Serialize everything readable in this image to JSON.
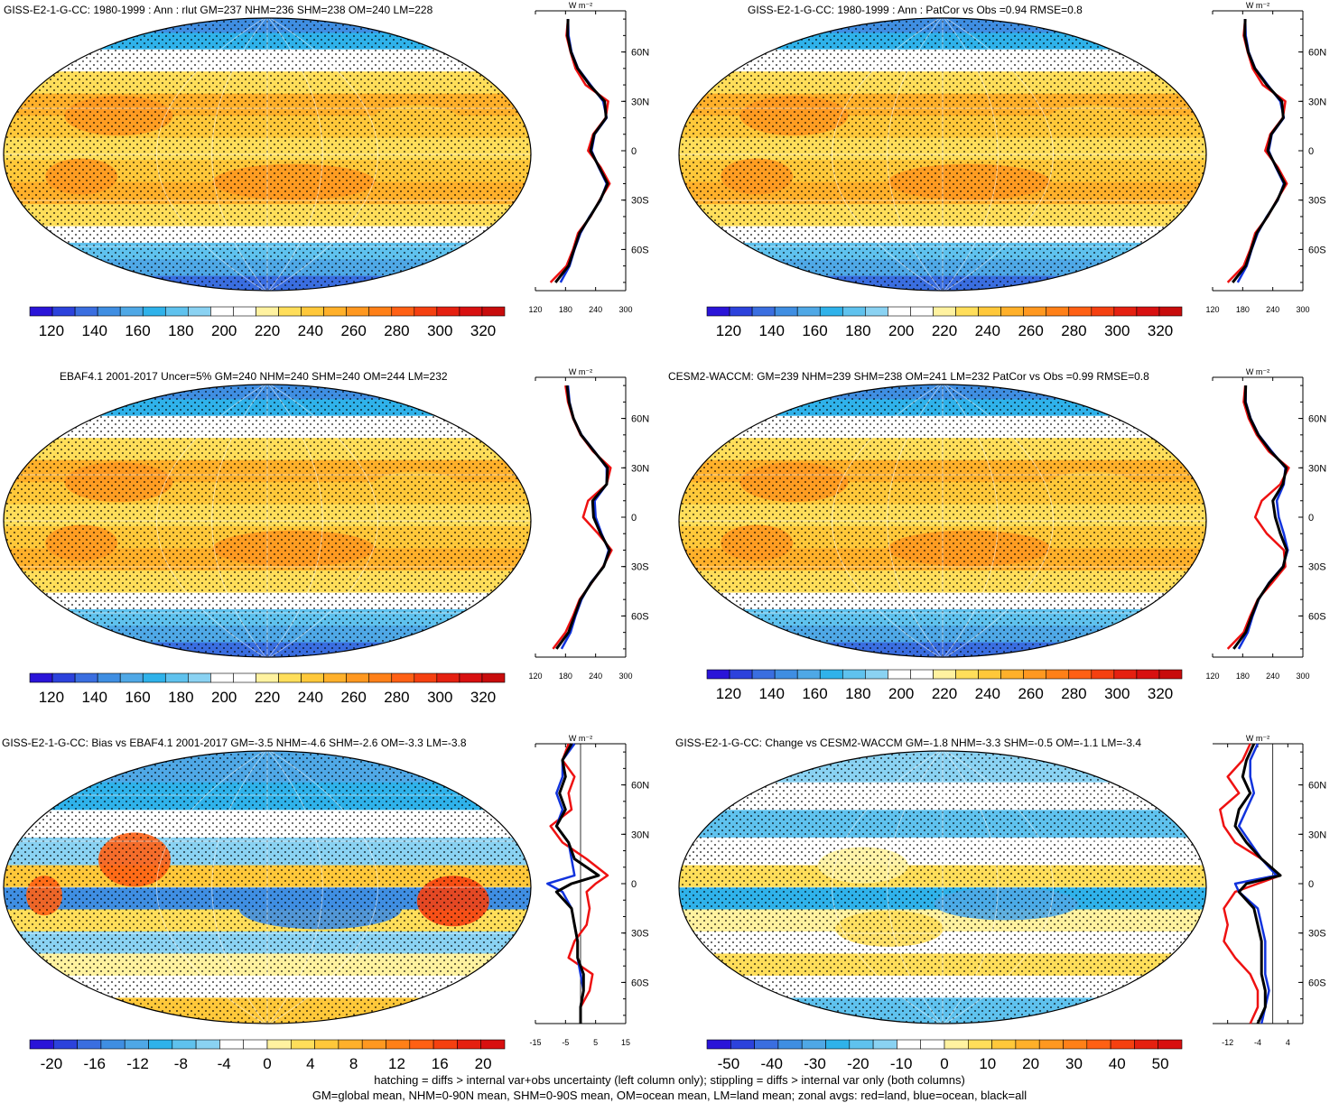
{
  "footnote": {
    "line1": "hatching = diffs > internal var+obs uncertainty (left column only); stippling = diffs > internal var only (both columns)",
    "line2": "GM=global mean, NHM=0-90N mean, SHM=0-90S mean, OM=ocean mean, LM=land mean; zonal avgs: red=land, blue=ocean, black=all"
  },
  "colors": {
    "land": "#ee1111",
    "ocean": "#1133dd",
    "all": "#000000",
    "abs_scale": [
      "#2a14d8",
      "#2c42dc",
      "#3a6ee0",
      "#3f8ee2",
      "#4fa8e6",
      "#2fb2ea",
      "#5fc2ee",
      "#8ad2f2",
      "#ffffff",
      "#ffffff",
      "#fff2a0",
      "#ffde5a",
      "#ffc83a",
      "#ffb02a",
      "#ff9820",
      "#ff8018",
      "#ff6014",
      "#f54010",
      "#e52010",
      "#d81010",
      "#c80c0c"
    ],
    "diff_scale": [
      "#2a14d8",
      "#2c42dc",
      "#3a6ee0",
      "#3f8ee2",
      "#4fa8e6",
      "#2fb2ea",
      "#5fc2ee",
      "#8ad2f2",
      "#ffffff",
      "#ffffff",
      "#fff2a0",
      "#ffde5a",
      "#ffc83a",
      "#ffb02a",
      "#ff9820",
      "#ff8018",
      "#ff6014",
      "#f54010",
      "#e52010",
      "#d81010"
    ]
  },
  "chart_data": [
    {
      "id": "p1",
      "type": "heatmap",
      "title": "GISS-E2-1-G-CC: 1980-1999 : Ann : rlut GM=237 NHM=236 SHM=238 OM=240 LM=228",
      "colorbar_ticks": [
        "120",
        "140",
        "160",
        "180",
        "200",
        "220",
        "240",
        "260",
        "280",
        "300",
        "320"
      ],
      "colorbar_range": [
        110,
        330
      ],
      "zonal": {
        "unit_label": "W m⁻²",
        "xlim": [
          120,
          300
        ],
        "xticks": [
          "120",
          "180",
          "240",
          "300"
        ],
        "lat_ticks": [
          "60N",
          "30N",
          "0",
          "30S",
          "60S"
        ],
        "zero_line": false,
        "lat": [
          80,
          70,
          60,
          50,
          40,
          30,
          20,
          10,
          0,
          -10,
          -20,
          -30,
          -40,
          -50,
          -60,
          -70,
          -80
        ],
        "land": [
          185,
          182,
          190,
          200,
          220,
          265,
          260,
          235,
          225,
          250,
          268,
          248,
          230,
          205,
          195,
          182,
          150
        ],
        "ocean": [
          185,
          186,
          192,
          205,
          230,
          255,
          262,
          238,
          232,
          246,
          262,
          250,
          228,
          210,
          198,
          188,
          170
        ],
        "all": [
          185,
          184,
          191,
          204,
          228,
          258,
          261,
          237,
          230,
          247,
          264,
          249,
          229,
          208,
          197,
          186,
          160
        ]
      }
    },
    {
      "id": "p2",
      "type": "heatmap",
      "title": "GISS-E2-1-G-CC: 1980-1999 : Ann : PatCor vs Obs =0.94 RMSE=0.8",
      "colorbar_ticks": [
        "120",
        "140",
        "160",
        "180",
        "200",
        "220",
        "240",
        "260",
        "280",
        "300",
        "320"
      ],
      "colorbar_range": [
        110,
        330
      ],
      "zonal": {
        "unit_label": "W m⁻²",
        "xlim": [
          120,
          300
        ],
        "xticks": [
          "120",
          "180",
          "240",
          "300"
        ],
        "lat_ticks": [
          "60N",
          "30N",
          "0",
          "30S",
          "60S"
        ],
        "zero_line": false,
        "lat": [
          80,
          70,
          60,
          50,
          40,
          30,
          20,
          10,
          0,
          -10,
          -20,
          -30,
          -40,
          -50,
          -60,
          -70,
          -80
        ],
        "land": [
          185,
          182,
          190,
          200,
          220,
          265,
          260,
          235,
          225,
          250,
          268,
          248,
          230,
          205,
          195,
          182,
          150
        ],
        "ocean": [
          185,
          186,
          192,
          205,
          230,
          255,
          262,
          238,
          232,
          246,
          262,
          250,
          228,
          210,
          198,
          188,
          170
        ],
        "all": [
          185,
          184,
          191,
          204,
          228,
          258,
          261,
          237,
          230,
          247,
          264,
          249,
          229,
          208,
          197,
          186,
          160
        ]
      }
    },
    {
      "id": "p3",
      "type": "heatmap",
      "title": "EBAF4.1 2001-2017 Uncer=5% GM=240 NHM=240 SHM=240 OM=244 LM=232",
      "colorbar_ticks": [
        "120",
        "140",
        "160",
        "180",
        "200",
        "220",
        "240",
        "260",
        "280",
        "300",
        "320"
      ],
      "colorbar_range": [
        110,
        330
      ],
      "zonal": {
        "unit_label": "W m⁻²",
        "xlim": [
          120,
          300
        ],
        "xticks": [
          "120",
          "180",
          "240",
          "300"
        ],
        "lat_ticks": [
          "60N",
          "30N",
          "0",
          "30S",
          "60S"
        ],
        "zero_line": false,
        "lat": [
          80,
          70,
          60,
          50,
          40,
          30,
          20,
          10,
          0,
          -10,
          -20,
          -30,
          -40,
          -50,
          -60,
          -70,
          -80
        ],
        "land": [
          180,
          185,
          195,
          210,
          235,
          270,
          262,
          225,
          215,
          245,
          272,
          255,
          232,
          208,
          195,
          180,
          155
        ],
        "ocean": [
          185,
          188,
          196,
          212,
          238,
          262,
          262,
          238,
          240,
          252,
          266,
          256,
          230,
          212,
          200,
          190,
          172
        ],
        "all": [
          183,
          187,
          196,
          211,
          237,
          264,
          262,
          234,
          236,
          250,
          268,
          256,
          231,
          210,
          198,
          186,
          162
        ]
      }
    },
    {
      "id": "p4",
      "type": "heatmap",
      "title": "CESM2-WACCM: GM=239 NHM=239 SHM=238 OM=241 LM=232 PatCor vs Obs =0.99 RMSE=0.8",
      "colorbar_ticks": [
        "120",
        "140",
        "160",
        "180",
        "200",
        "220",
        "240",
        "260",
        "280",
        "300",
        "320"
      ],
      "colorbar_range": [
        110,
        330
      ],
      "zonal": {
        "unit_label": "W m⁻²",
        "xlim": [
          120,
          300
        ],
        "xticks": [
          "120",
          "180",
          "240",
          "300"
        ],
        "lat_ticks": [
          "60N",
          "30N",
          "0",
          "30S",
          "60S"
        ],
        "zero_line": false,
        "lat": [
          80,
          70,
          60,
          50,
          40,
          30,
          20,
          10,
          0,
          -10,
          -20,
          -30,
          -40,
          -50,
          -60,
          -70,
          -80
        ],
        "land": [
          185,
          182,
          192,
          208,
          232,
          272,
          255,
          218,
          205,
          228,
          262,
          265,
          238,
          210,
          195,
          182,
          150
        ],
        "ocean": [
          186,
          186,
          196,
          212,
          238,
          265,
          262,
          248,
          252,
          262,
          270,
          260,
          232,
          212,
          200,
          190,
          172
        ],
        "all": [
          186,
          185,
          195,
          211,
          236,
          267,
          260,
          240,
          245,
          255,
          268,
          261,
          233,
          211,
          198,
          186,
          162
        ]
      }
    },
    {
      "id": "p5",
      "type": "heatmap",
      "title": "GISS-E2-1-G-CC: Bias vs EBAF4.1 2001-2017 GM=-3.5 NHM=-4.6 SHM=-2.6 OM=-3.3 LM=-3.8",
      "colorbar_ticks": [
        "-20",
        "-16",
        "-12",
        "-8",
        "-4",
        "0",
        "4",
        "8",
        "12",
        "16",
        "20"
      ],
      "colorbar_range": [
        -22,
        22
      ],
      "zonal": {
        "unit_label": "W m⁻²",
        "xlim": [
          -15,
          15
        ],
        "xticks": [
          "-15",
          "-5",
          "5",
          "15"
        ],
        "lat_ticks": [
          "60N",
          "30N",
          "0",
          "30S",
          "60S"
        ],
        "zero_line": true,
        "lat": [
          85,
          75,
          65,
          55,
          45,
          35,
          25,
          15,
          5,
          0,
          -5,
          -15,
          -25,
          -35,
          -45,
          -55,
          -65,
          -75,
          -85
        ],
        "land": [
          -4,
          -6,
          -2,
          -4,
          -3,
          -10,
          -6,
          2,
          9,
          5,
          2,
          3,
          2,
          -2,
          -4,
          4,
          3,
          0,
          0
        ],
        "ocean": [
          -2,
          -6,
          -6,
          -8,
          -6,
          -8,
          -4,
          -3,
          -2,
          -11,
          -6,
          -3,
          -2,
          -1,
          -1,
          0,
          1,
          0,
          0
        ],
        "all": [
          -3,
          -6,
          -5,
          -7,
          -5,
          -8,
          -4,
          -2,
          6,
          -3,
          -8,
          -3,
          -2,
          -1,
          -1,
          1,
          1,
          0,
          0
        ]
      }
    },
    {
      "id": "p6",
      "type": "heatmap",
      "title": "GISS-E2-1-G-CC: Change vs CESM2-WACCM GM=-1.8 NHM=-3.3 SHM=-0.5 OM=-1.1 LM=-3.4",
      "colorbar_ticks": [
        "-50",
        "-40",
        "-30",
        "-20",
        "-10",
        "0",
        "10",
        "20",
        "30",
        "40",
        "50"
      ],
      "colorbar_range": [
        -55,
        55
      ],
      "zonal": {
        "unit_label": "W m⁻²",
        "xlim": [
          -16,
          8
        ],
        "xticks": [
          "-12",
          "-4",
          "4"
        ],
        "lat_ticks": [
          "60N",
          "30N",
          "0",
          "30S",
          "60S"
        ],
        "zero_line": true,
        "lat": [
          85,
          75,
          65,
          55,
          45,
          35,
          25,
          15,
          5,
          0,
          -5,
          -15,
          -25,
          -35,
          -45,
          -55,
          -65,
          -75,
          -85
        ],
        "land": [
          -6,
          -8,
          -12,
          -9,
          -14,
          -13,
          -10,
          -3,
          2,
          -4,
          -10,
          -13,
          -12,
          -13,
          -10,
          -6,
          -4,
          -4,
          -6
        ],
        "ocean": [
          -4,
          -6,
          -6,
          -5,
          -7,
          -9,
          -6,
          -3,
          1,
          -10,
          -9,
          -4,
          -3,
          -2,
          -2,
          -2,
          -1,
          -2,
          -3
        ],
        "all": [
          -5,
          -7,
          -8,
          -6,
          -9,
          -10,
          -7,
          -3,
          2,
          -7,
          -9,
          -5,
          -4,
          -3,
          -3,
          -3,
          -2,
          -2,
          -4
        ]
      }
    }
  ]
}
